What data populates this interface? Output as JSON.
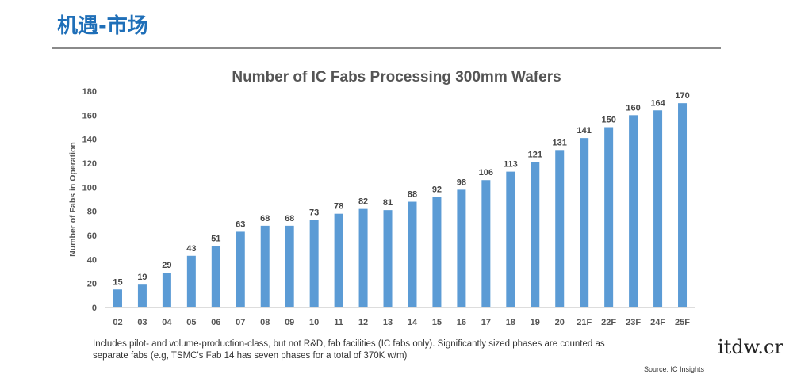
{
  "header": {
    "title": "机遇-市场"
  },
  "chart_data": {
    "type": "bar",
    "title": "Number of IC Fabs Processing 300mm Wafers",
    "xlabel": "",
    "ylabel": "Number of Fabs in Operation",
    "ylim": [
      0,
      180
    ],
    "yticks": [
      0,
      20,
      40,
      60,
      80,
      100,
      120,
      140,
      160,
      180
    ],
    "categories": [
      "02",
      "03",
      "04",
      "05",
      "06",
      "07",
      "08",
      "09",
      "10",
      "11",
      "12",
      "13",
      "14",
      "15",
      "16",
      "17",
      "18",
      "19",
      "20",
      "21F",
      "22F",
      "23F",
      "24F",
      "25F"
    ],
    "values": [
      15,
      19,
      29,
      43,
      51,
      63,
      68,
      68,
      73,
      78,
      82,
      81,
      88,
      92,
      98,
      106,
      113,
      121,
      131,
      141,
      150,
      160,
      164,
      170
    ],
    "bar_color": "#5b9bd5",
    "grid": false
  },
  "footnote": "Includes pilot- and volume-production-class, but not R&D, fab facilities (IC fabs only). Significantly sized phases are counted as separate fabs  (e.g, TSMC's Fab 14 has seven phases for a total of 370K w/m)",
  "source": "Source:  IC Insights",
  "watermark": "itdw.cr"
}
